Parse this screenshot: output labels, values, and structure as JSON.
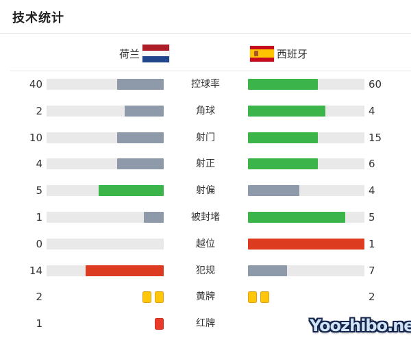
{
  "page": {
    "title": "技术统计",
    "watermark": "Yoozhibo.net"
  },
  "teams": {
    "home": {
      "name": "荷兰",
      "flag": "netherlands-flag"
    },
    "away": {
      "name": "西班牙",
      "flag": "spain-flag"
    }
  },
  "colors": {
    "slate": "#8e9aa9",
    "green": "#3bb44a",
    "red": "#dd3b20",
    "track": "#e9e9e9",
    "card_yellow": "#ffc60a",
    "card_red": "#ea3a2a"
  },
  "rows": [
    {
      "type": "bar",
      "label": "控球率",
      "home": "40",
      "away": "60",
      "home_pct": 40,
      "away_pct": 60,
      "home_color": "slate",
      "away_color": "green"
    },
    {
      "type": "bar",
      "label": "角球",
      "home": "2",
      "away": "4",
      "home_pct": 33.3,
      "away_pct": 66.7,
      "home_color": "slate",
      "away_color": "green"
    },
    {
      "type": "bar",
      "label": "射门",
      "home": "10",
      "away": "15",
      "home_pct": 40,
      "away_pct": 60,
      "home_color": "slate",
      "away_color": "green"
    },
    {
      "type": "bar",
      "label": "射正",
      "home": "4",
      "away": "6",
      "home_pct": 40,
      "away_pct": 60,
      "home_color": "slate",
      "away_color": "green"
    },
    {
      "type": "bar",
      "label": "射偏",
      "home": "5",
      "away": "4",
      "home_pct": 55.6,
      "away_pct": 44.4,
      "home_color": "green",
      "away_color": "slate"
    },
    {
      "type": "bar",
      "label": "被封堵",
      "home": "1",
      "away": "5",
      "home_pct": 16.7,
      "away_pct": 83.3,
      "home_color": "slate",
      "away_color": "green"
    },
    {
      "type": "bar",
      "label": "越位",
      "home": "0",
      "away": "1",
      "home_pct": 0,
      "away_pct": 100,
      "home_color": "none",
      "away_color": "red"
    },
    {
      "type": "bar",
      "label": "犯规",
      "home": "14",
      "away": "7",
      "home_pct": 66.7,
      "away_pct": 33.3,
      "home_color": "red",
      "away_color": "slate"
    },
    {
      "type": "cards",
      "label": "黄牌",
      "home": "2",
      "away": "2",
      "card": "yellow",
      "home_cards": 2,
      "away_cards": 2
    },
    {
      "type": "cards",
      "label": "红牌",
      "home": "1",
      "away": "0",
      "card": "red",
      "home_cards": 1,
      "away_cards": 0
    }
  ],
  "chart_data": {
    "type": "bar",
    "title": "技术统计",
    "orientation": "horizontal-paired-mirrored",
    "categories": [
      "控球率",
      "角球",
      "射门",
      "射正",
      "射偏",
      "被封堵",
      "越位",
      "犯规",
      "黄牌",
      "红牌"
    ],
    "series": [
      {
        "name": "荷兰",
        "values": [
          40,
          2,
          10,
          4,
          5,
          1,
          0,
          14,
          2,
          1
        ]
      },
      {
        "name": "西班牙",
        "values": [
          60,
          4,
          15,
          6,
          4,
          5,
          1,
          7,
          2,
          0
        ]
      }
    ],
    "notes": "Each bar fill = value/(home+away); leading side green (red for negative stats 越位/犯规), trailing side slate gray; card rows drawn as yellow/red card icons instead of bars"
  }
}
